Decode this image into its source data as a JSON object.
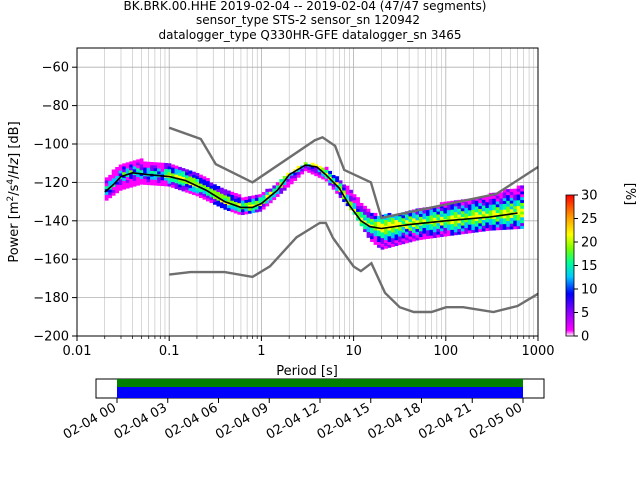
{
  "title": {
    "line1": "BK.BRK.00.HHE   2019-02-04 -- 2019-02-04  (47/47 segments)",
    "line2": "sensor_type STS-2 sensor_sn 120942",
    "line3": "datalogger_type Q330HR-GFE datalogger_sn 3465"
  },
  "chart_data": [
    {
      "type": "heatmap",
      "title": "BK.BRK.00.HHE   2019-02-04 -- 2019-02-04  (47/47 segments)",
      "xlabel": "Period [s]",
      "ylabel": "Power [m^2/s^4/Hz] [dB]",
      "xscale": "log",
      "xlim": [
        0.01,
        1000
      ],
      "ylim": [
        -200,
        -50
      ],
      "x_ticks": [
        "0.01",
        "0.1",
        "1",
        "10",
        "100",
        "1000"
      ],
      "y_ticks": [
        "−60",
        "−80",
        "−100",
        "−120",
        "−140",
        "−160",
        "−180",
        "−200"
      ],
      "grid": true,
      "colorbar": {
        "label": "[%]",
        "range": [
          0,
          30
        ],
        "ticks": [
          "0",
          "5",
          "10",
          "15",
          "20",
          "25",
          "30"
        ],
        "colors": [
          "#ffffff",
          "#ff00ff",
          "#0000ff",
          "#00c8ff",
          "#00ff96",
          "#78ff00",
          "#ffff00",
          "#ff9600",
          "#ff0000"
        ]
      },
      "mean_curve": {
        "x": [
          0.02,
          0.025,
          0.03,
          0.04,
          0.06,
          0.1,
          0.15,
          0.25,
          0.4,
          0.6,
          0.8,
          1.0,
          1.5,
          2.0,
          3.0,
          4.0,
          5.0,
          7.0,
          9.0,
          12.0,
          15.0,
          20.0,
          40.0,
          100.0,
          300.0,
          600.0
        ],
        "y": [
          -125,
          -121,
          -117,
          -115,
          -116,
          -117,
          -119,
          -124,
          -130,
          -133,
          -133,
          -131,
          -124,
          -116,
          -111,
          -112,
          -116,
          -123,
          -132,
          -140,
          -143,
          -144,
          -142,
          -140,
          -138,
          -136
        ]
      },
      "density_band": {
        "x": [
          0.02,
          0.03,
          0.05,
          0.1,
          0.2,
          0.4,
          0.6,
          1.0,
          2.0,
          3.0,
          5.0,
          10.0,
          15.0,
          20.0,
          50.0,
          100.0,
          300.0,
          700.0
        ],
        "upper": [
          -119,
          -111,
          -109,
          -111,
          -116,
          -124,
          -128,
          -127,
          -116,
          -110,
          -113,
          -126,
          -136,
          -138,
          -135,
          -131,
          -127,
          -122
        ],
        "lower": [
          -130,
          -124,
          -121,
          -122,
          -127,
          -134,
          -137,
          -135,
          -122,
          -114,
          -119,
          -136,
          -150,
          -155,
          -150,
          -148,
          -145,
          -144
        ]
      },
      "nhnm": {
        "x": [
          0.1,
          0.22,
          0.32,
          0.8,
          3.8,
          4.6,
          6.3,
          7.9,
          15.4,
          20.0,
          354.8,
          1000.0
        ],
        "y": [
          -91.5,
          -97.4,
          -110.5,
          -120.0,
          -98.0,
          -96.5,
          -101.0,
          -113.5,
          -120.0,
          -138.5,
          -126.0,
          -112.0
        ]
      },
      "nlnm": {
        "x": [
          0.1,
          0.17,
          0.4,
          0.8,
          1.24,
          2.4,
          4.3,
          5.0,
          6.0,
          10.0,
          12.0,
          15.6,
          21.9,
          31.6,
          45.0,
          70.0,
          101.0,
          154.0,
          328.0,
          600.0,
          1000.0
        ],
        "y": [
          -168.0,
          -166.7,
          -166.7,
          -169.2,
          -163.7,
          -148.6,
          -141.1,
          -141.1,
          -149.0,
          -163.8,
          -166.2,
          -162.1,
          -177.5,
          -185.0,
          -187.5,
          -187.5,
          -185.0,
          -185.0,
          -187.5,
          -184.4,
          -178.0
        ]
      }
    },
    {
      "type": "bar",
      "title": "",
      "x_ticks": [
        "02-04 00",
        "02-04 03",
        "02-04 06",
        "02-04 09",
        "02-04 12",
        "02-04 15",
        "02-04 18",
        "02-04 21",
        "02-05 00"
      ],
      "series": [
        {
          "start": "02-04 00",
          "end": "02-05 00",
          "color": "#008000"
        },
        {
          "start": "02-04 00",
          "end": "02-05 00",
          "color": "#0000ff"
        }
      ]
    }
  ]
}
